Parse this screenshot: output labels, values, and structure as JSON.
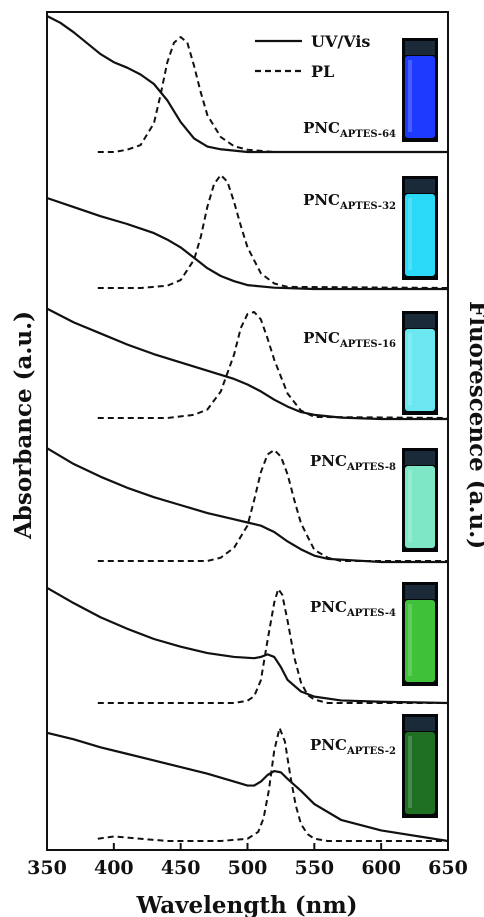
{
  "chart_data": {
    "type": "line",
    "title": "",
    "xlabel": "Wavelength (nm)",
    "ylabel_left": "Absorbance (a.u.)",
    "ylabel_right": "Fluorescence (a.u.)",
    "xlim": [
      350,
      650
    ],
    "x_ticks": [
      350,
      400,
      450,
      500,
      550,
      600,
      650
    ],
    "y_ticks": "none",
    "stacked_offsets": true,
    "grid": false,
    "legend": {
      "placement": "top-right",
      "entries": [
        {
          "label": "UV/Vis",
          "style": "solid"
        },
        {
          "label": "PL",
          "style": "dashed"
        }
      ]
    },
    "panels": [
      {
        "main": "PNC",
        "sub": "APTES-64",
        "vial_color": "#1e3aff",
        "uv_x": [
          350,
          360,
          370,
          380,
          390,
          400,
          410,
          420,
          430,
          440,
          450,
          460,
          470,
          480,
          500,
          550,
          600,
          650
        ],
        "uv_y": [
          1.0,
          0.95,
          0.88,
          0.8,
          0.72,
          0.66,
          0.62,
          0.57,
          0.5,
          0.38,
          0.22,
          0.1,
          0.04,
          0.02,
          0.0,
          0.0,
          0.0,
          0.0
        ],
        "pl_x": [
          388,
          400,
          410,
          420,
          430,
          435,
          440,
          445,
          450,
          455,
          460,
          465,
          470,
          480,
          490,
          500,
          520,
          650
        ],
        "pl_y": [
          0.0,
          0.0,
          0.02,
          0.06,
          0.25,
          0.5,
          0.78,
          0.95,
          1.0,
          0.95,
          0.75,
          0.52,
          0.32,
          0.13,
          0.05,
          0.02,
          0.0,
          0.0
        ]
      },
      {
        "main": "PNC",
        "sub": "APTES-32",
        "vial_color": "#2ad8f7",
        "uv_x": [
          350,
          370,
          390,
          410,
          430,
          440,
          450,
          460,
          470,
          480,
          490,
          500,
          520,
          550,
          600,
          650
        ],
        "uv_y": [
          0.7,
          0.63,
          0.56,
          0.5,
          0.43,
          0.38,
          0.32,
          0.24,
          0.16,
          0.1,
          0.06,
          0.03,
          0.01,
          0.0,
          0.0,
          0.0
        ],
        "pl_x": [
          388,
          420,
          440,
          450,
          460,
          465,
          470,
          475,
          480,
          485,
          490,
          495,
          500,
          510,
          520,
          530,
          650
        ],
        "pl_y": [
          0.0,
          0.0,
          0.02,
          0.07,
          0.25,
          0.45,
          0.72,
          0.92,
          1.0,
          0.94,
          0.76,
          0.55,
          0.36,
          0.13,
          0.04,
          0.01,
          0.0
        ]
      },
      {
        "main": "PNC",
        "sub": "APTES-16",
        "vial_color": "#6ae7f0",
        "uv_x": [
          350,
          370,
          390,
          410,
          430,
          450,
          470,
          490,
          500,
          510,
          520,
          530,
          540,
          550,
          570,
          600,
          650
        ],
        "uv_y": [
          0.8,
          0.7,
          0.62,
          0.54,
          0.47,
          0.41,
          0.35,
          0.29,
          0.25,
          0.2,
          0.14,
          0.09,
          0.05,
          0.03,
          0.01,
          0.0,
          0.0
        ],
        "pl_x": [
          388,
          440,
          460,
          470,
          480,
          490,
          495,
          500,
          505,
          510,
          515,
          520,
          530,
          540,
          550,
          650
        ],
        "pl_y": [
          0.0,
          0.0,
          0.03,
          0.08,
          0.25,
          0.6,
          0.85,
          0.98,
          1.0,
          0.93,
          0.75,
          0.55,
          0.23,
          0.07,
          0.01,
          0.0
        ]
      },
      {
        "main": "PNC",
        "sub": "APTES-8",
        "vial_color": "#7ee8c6",
        "uv_x": [
          350,
          370,
          390,
          410,
          430,
          450,
          470,
          490,
          500,
          510,
          515,
          520,
          530,
          540,
          550,
          560,
          580,
          600,
          650
        ],
        "uv_y": [
          0.72,
          0.62,
          0.54,
          0.47,
          0.41,
          0.36,
          0.31,
          0.27,
          0.25,
          0.23,
          0.21,
          0.19,
          0.13,
          0.08,
          0.04,
          0.02,
          0.01,
          0.0,
          0.0
        ],
        "pl_x": [
          388,
          470,
          480,
          490,
          500,
          505,
          510,
          515,
          520,
          525,
          530,
          535,
          540,
          550,
          560,
          570,
          650
        ],
        "pl_y": [
          0.0,
          0.0,
          0.03,
          0.12,
          0.32,
          0.55,
          0.8,
          0.96,
          1.0,
          0.94,
          0.78,
          0.55,
          0.34,
          0.1,
          0.03,
          0.0,
          0.0
        ]
      },
      {
        "main": "PNC",
        "sub": "APTES-4",
        "vial_color": "#3fc13a",
        "uv_x": [
          350,
          370,
          390,
          410,
          430,
          450,
          470,
          490,
          505,
          510,
          515,
          520,
          525,
          530,
          540,
          550,
          570,
          600,
          650
        ],
        "uv_y": [
          0.9,
          0.78,
          0.67,
          0.58,
          0.5,
          0.44,
          0.39,
          0.36,
          0.35,
          0.36,
          0.38,
          0.36,
          0.28,
          0.18,
          0.09,
          0.05,
          0.02,
          0.01,
          0.0
        ],
        "pl_x": [
          388,
          490,
          500,
          505,
          510,
          515,
          520,
          523,
          526,
          530,
          535,
          540,
          545,
          550,
          560,
          650
        ],
        "pl_y": [
          0.0,
          0.0,
          0.02,
          0.06,
          0.2,
          0.55,
          0.88,
          1.0,
          0.95,
          0.72,
          0.4,
          0.18,
          0.07,
          0.03,
          0.0,
          0.0
        ]
      },
      {
        "main": "PNC",
        "sub": "APTES-2",
        "vial_color": "#1f6f23",
        "uv_x": [
          350,
          370,
          390,
          410,
          430,
          450,
          470,
          490,
          500,
          505,
          510,
          515,
          520,
          525,
          530,
          540,
          550,
          570,
          600,
          650
        ],
        "uv_y": [
          0.82,
          0.77,
          0.71,
          0.66,
          0.61,
          0.56,
          0.51,
          0.45,
          0.42,
          0.42,
          0.45,
          0.5,
          0.53,
          0.52,
          0.47,
          0.38,
          0.28,
          0.16,
          0.08,
          0.0
        ],
        "pl_x": [
          388,
          400,
          410,
          420,
          440,
          480,
          500,
          508,
          512,
          516,
          520,
          524,
          528,
          532,
          536,
          540,
          545,
          550,
          560,
          650
        ],
        "pl_y": [
          0.02,
          0.04,
          0.03,
          0.02,
          0.0,
          0.0,
          0.02,
          0.08,
          0.2,
          0.45,
          0.8,
          1.0,
          0.88,
          0.58,
          0.32,
          0.15,
          0.06,
          0.02,
          0.0,
          0.0
        ]
      }
    ]
  }
}
